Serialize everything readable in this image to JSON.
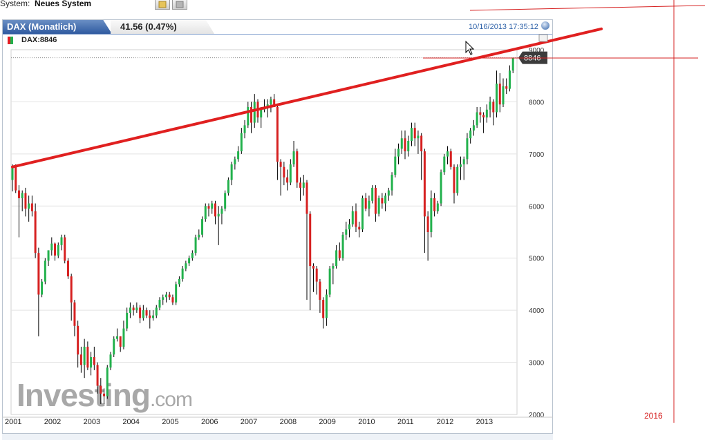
{
  "toolbar": {
    "system_label": "System:",
    "system_value": "Neues System"
  },
  "panel": {
    "tab_title": "DAX (Monatlich)",
    "change": "41.56 (0.47%)",
    "timestamp": "10/16/2013 17:35:12",
    "symbol_label": "DAX:8846"
  },
  "watermark": {
    "brand": "Investing",
    "suffix": ".com"
  },
  "colors": {
    "up": "#22b14c",
    "down": "#d62020",
    "trendline": "#e02020",
    "annotation": "#d62020",
    "grid": "#e3e3e3",
    "price_tag": "#3c3c3c"
  },
  "chart_data": {
    "type": "candlestick",
    "title": "DAX (Monatlich)",
    "ylim": [
      2000,
      9000
    ],
    "y_ticks": [
      2000,
      3000,
      4000,
      5000,
      6000,
      7000,
      8000,
      9000
    ],
    "x_labels": [
      "2001",
      "2002",
      "2003",
      "2004",
      "2005",
      "2006",
      "2007",
      "2008",
      "2009",
      "2010",
      "2011",
      "2012",
      "2013"
    ],
    "x_range": [
      2001.0,
      2014.0
    ],
    "last_price": "8846",
    "last_value": 8846,
    "trendline": {
      "start": [
        2001.0,
        6750
      ],
      "end": [
        2016.0,
        9400
      ]
    },
    "annotation_year": "2016",
    "series": [
      {
        "name": "DAX",
        "ohlc": [
          [
            6500,
            6800,
            6280,
            6750
          ],
          [
            6750,
            6800,
            6250,
            6300
          ],
          [
            6300,
            6400,
            5400,
            6150
          ],
          [
            6150,
            6300,
            5900,
            6250
          ],
          [
            6250,
            6350,
            5800,
            5950
          ],
          [
            5950,
            6200,
            5700,
            6050
          ],
          [
            6050,
            6200,
            5800,
            5900
          ],
          [
            5900,
            6050,
            5000,
            5100
          ],
          [
            5100,
            5200,
            3500,
            4300
          ],
          [
            4300,
            4600,
            4250,
            4550
          ],
          [
            4550,
            5000,
            4500,
            4950
          ],
          [
            4950,
            5150,
            4850,
            5150
          ],
          [
            5150,
            5400,
            5050,
            5280
          ],
          [
            5280,
            5300,
            4950,
            5050
          ],
          [
            5050,
            5300,
            5000,
            5250
          ],
          [
            5250,
            5450,
            5150,
            5400
          ],
          [
            5400,
            5450,
            4900,
            4950
          ],
          [
            4950,
            5000,
            4600,
            4650
          ],
          [
            4650,
            4700,
            3800,
            4150
          ],
          [
            4150,
            4200,
            3500,
            3700
          ],
          [
            3700,
            3800,
            2900,
            3150
          ],
          [
            3150,
            3300,
            2800,
            2950
          ],
          [
            2950,
            3450,
            2700,
            3300
          ],
          [
            3300,
            3400,
            2850,
            2900
          ],
          [
            2900,
            3200,
            2750,
            3100
          ],
          [
            3100,
            3300,
            2850,
            2950
          ],
          [
            2950,
            3000,
            2400,
            2550
          ],
          [
            2550,
            2700,
            2200,
            2400
          ],
          [
            2400,
            2500,
            2200,
            2350
          ],
          [
            2350,
            2950,
            2300,
            2900
          ],
          [
            2900,
            3200,
            2850,
            3150
          ],
          [
            3150,
            3500,
            3100,
            3450
          ],
          [
            3450,
            3650,
            3400,
            3500
          ],
          [
            3500,
            3500,
            3200,
            3300
          ],
          [
            3300,
            3800,
            3250,
            3650
          ],
          [
            3650,
            4050,
            3600,
            3950
          ],
          [
            3950,
            4150,
            3850,
            4050
          ],
          [
            4050,
            4100,
            3900,
            4000
          ],
          [
            4000,
            4150,
            3950,
            4050
          ],
          [
            4050,
            4100,
            3750,
            3850
          ],
          [
            3850,
            4100,
            3800,
            4000
          ],
          [
            4000,
            4050,
            3850,
            3900
          ],
          [
            3900,
            4000,
            3650,
            3850
          ],
          [
            3850,
            4000,
            3800,
            3900
          ],
          [
            3900,
            4100,
            3850,
            4050
          ],
          [
            4050,
            4250,
            4000,
            4200
          ],
          [
            4200,
            4300,
            4100,
            4250
          ],
          [
            4250,
            4350,
            4150,
            4300
          ],
          [
            4300,
            4350,
            4200,
            4250
          ],
          [
            4250,
            4300,
            4100,
            4150
          ],
          [
            4150,
            4550,
            4100,
            4500
          ],
          [
            4500,
            4650,
            4450,
            4600
          ],
          [
            4600,
            4850,
            4550,
            4800
          ],
          [
            4800,
            4950,
            4750,
            4900
          ],
          [
            4900,
            5050,
            4850,
            5000
          ],
          [
            5000,
            5150,
            4950,
            5100
          ],
          [
            5100,
            5450,
            5050,
            5400
          ],
          [
            5400,
            5550,
            5350,
            5450
          ],
          [
            5450,
            5800,
            5400,
            5750
          ],
          [
            5750,
            6050,
            5700,
            6000
          ],
          [
            6000,
            6050,
            5800,
            5950
          ],
          [
            5950,
            6100,
            5850,
            6050
          ],
          [
            6050,
            6100,
            5650,
            5800
          ],
          [
            5800,
            6000,
            5250,
            5850
          ],
          [
            5850,
            6000,
            5650,
            5950
          ],
          [
            5950,
            6300,
            5900,
            6250
          ],
          [
            6250,
            6550,
            6200,
            6500
          ],
          [
            6500,
            6850,
            6400,
            6800
          ],
          [
            6800,
            6950,
            6700,
            6900
          ],
          [
            6900,
            7150,
            6850,
            7050
          ],
          [
            7050,
            7500,
            7000,
            7400
          ],
          [
            7400,
            7650,
            7300,
            7550
          ],
          [
            7550,
            8000,
            7500,
            7900
          ],
          [
            7900,
            8000,
            7400,
            7600
          ],
          [
            7600,
            8150,
            7500,
            8000
          ],
          [
            8000,
            8050,
            7600,
            7700
          ],
          [
            7700,
            7900,
            7500,
            7850
          ],
          [
            7850,
            8050,
            7800,
            7900
          ],
          [
            7900,
            8050,
            7700,
            7950
          ],
          [
            7950,
            8100,
            7800,
            8050
          ],
          [
            8050,
            8150,
            7900,
            7900
          ],
          [
            7900,
            7950,
            6500,
            6850
          ],
          [
            6850,
            6900,
            6200,
            6750
          ],
          [
            6750,
            6850,
            6400,
            6550
          ],
          [
            6550,
            6700,
            6300,
            6450
          ],
          [
            6450,
            6900,
            6400,
            6800
          ],
          [
            6800,
            7250,
            6750,
            7050
          ],
          [
            7050,
            7100,
            6350,
            6450
          ],
          [
            6450,
            6550,
            6100,
            6350
          ],
          [
            6350,
            6600,
            6200,
            6450
          ],
          [
            6450,
            6500,
            4200,
            5850
          ],
          [
            5850,
            5900,
            4000,
            4850
          ],
          [
            4850,
            4900,
            4350,
            4800
          ],
          [
            4800,
            4850,
            4300,
            4550
          ],
          [
            4550,
            4600,
            3950,
            4200
          ],
          [
            4200,
            4250,
            3650,
            3850
          ],
          [
            3850,
            4400,
            3700,
            4300
          ],
          [
            4300,
            4850,
            4250,
            4800
          ],
          [
            4800,
            4900,
            4500,
            4850
          ],
          [
            4850,
            5250,
            4800,
            5150
          ],
          [
            5150,
            5300,
            4950,
            5000
          ],
          [
            5000,
            5500,
            4950,
            5450
          ],
          [
            5450,
            5700,
            5350,
            5550
          ],
          [
            5550,
            5750,
            5400,
            5650
          ],
          [
            5650,
            6000,
            5600,
            5900
          ],
          [
            5900,
            6050,
            5500,
            5600
          ],
          [
            5600,
            5700,
            5400,
            5550
          ],
          [
            5550,
            6200,
            5500,
            6150
          ],
          [
            6150,
            6250,
            5900,
            5950
          ],
          [
            5950,
            6200,
            5800,
            6100
          ],
          [
            6100,
            6400,
            6050,
            6350
          ],
          [
            6350,
            6400,
            5700,
            5850
          ],
          [
            5850,
            6200,
            5800,
            6150
          ],
          [
            6150,
            6250,
            5950,
            6050
          ],
          [
            6050,
            6250,
            5900,
            6200
          ],
          [
            6200,
            6350,
            6100,
            6300
          ],
          [
            6300,
            6650,
            6200,
            6600
          ],
          [
            6600,
            7100,
            6550,
            6950
          ],
          [
            6950,
            7200,
            6800,
            7100
          ],
          [
            7100,
            7450,
            7000,
            7300
          ],
          [
            7300,
            7450,
            6900,
            7050
          ],
          [
            7050,
            7350,
            6950,
            7250
          ],
          [
            7250,
            7600,
            7150,
            7500
          ],
          [
            7500,
            7600,
            7150,
            7300
          ],
          [
            7300,
            7450,
            7000,
            7350
          ],
          [
            7350,
            7400,
            6500,
            7050
          ],
          [
            7050,
            7100,
            5100,
            5800
          ],
          [
            5800,
            5900,
            4950,
            5500
          ],
          [
            5500,
            6300,
            5400,
            6150
          ],
          [
            6150,
            6250,
            5800,
            5900
          ],
          [
            5900,
            6100,
            5850,
            6050
          ],
          [
            6050,
            6700,
            6000,
            6650
          ],
          [
            6650,
            7000,
            6600,
            6950
          ],
          [
            6950,
            7150,
            6800,
            7050
          ],
          [
            7050,
            7100,
            6700,
            6750
          ],
          [
            6750,
            6800,
            6050,
            6250
          ],
          [
            6250,
            6800,
            6200,
            6750
          ],
          [
            6750,
            6950,
            6500,
            6800
          ],
          [
            6800,
            6950,
            6500,
            6900
          ],
          [
            6900,
            7400,
            6800,
            7300
          ],
          [
            7300,
            7500,
            7200,
            7450
          ],
          [
            7450,
            7650,
            7350,
            7550
          ],
          [
            7550,
            7900,
            7500,
            7800
          ],
          [
            7800,
            7900,
            7600,
            7750
          ],
          [
            7750,
            7800,
            7400,
            7700
          ],
          [
            7700,
            7950,
            7600,
            7850
          ],
          [
            7850,
            8100,
            7700,
            8000
          ],
          [
            8000,
            8050,
            7550,
            7800
          ],
          [
            7800,
            8600,
            7700,
            8350
          ],
          [
            8350,
            8550,
            7800,
            7950
          ],
          [
            7950,
            8450,
            7900,
            8300
          ],
          [
            8300,
            8450,
            8150,
            8250
          ],
          [
            8250,
            8700,
            8200,
            8600
          ],
          [
            8600,
            8850,
            8550,
            8846
          ]
        ]
      }
    ]
  }
}
